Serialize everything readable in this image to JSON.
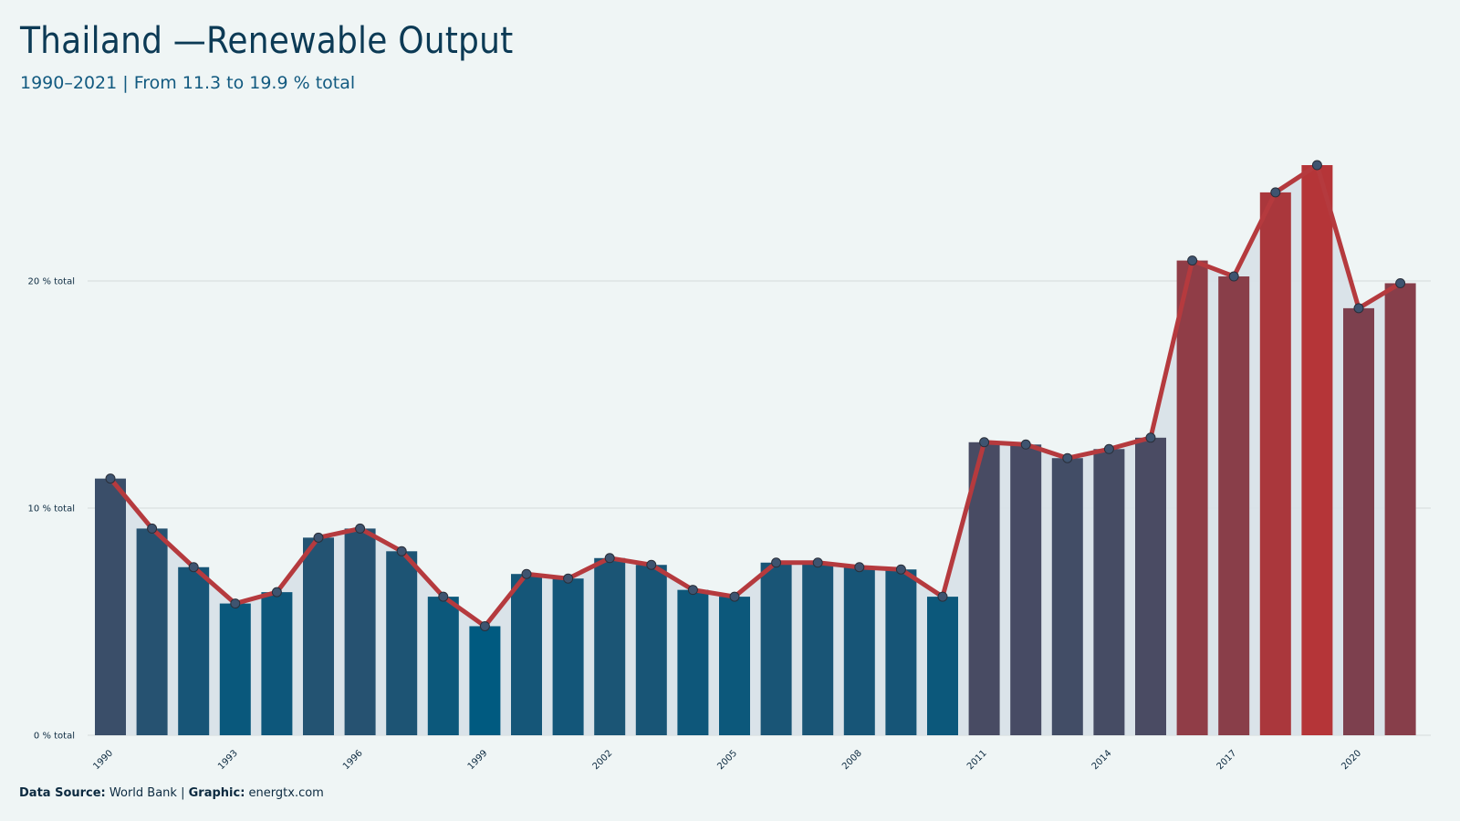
{
  "title": "Thailand —Renewable Output",
  "subtitle": "1990–2021 | From 11.3 to 19.9 % total",
  "footer": {
    "source_label": "Data Source:",
    "source_value": "World Bank",
    "separator": "|",
    "graphic_label": "Graphic:",
    "graphic_value": "energtx.com"
  },
  "colors": {
    "background": "#eff5f5",
    "line": "#b53a3e",
    "area": "#d8e2e8",
    "marker": "#3e5470",
    "bar_low": "#005a80",
    "bar_high": "#b53538",
    "grid": "#d4dadc"
  },
  "chart_data": {
    "type": "bar",
    "title": "",
    "xlabel": "",
    "ylabel": "",
    "ylim": [
      0,
      26
    ],
    "y_ticks": [
      0,
      10,
      20
    ],
    "y_tick_labels": [
      "0 % total",
      "10 % total",
      "20 % total"
    ],
    "x_tick_labels": [
      "1990",
      "1993",
      "1996",
      "1999",
      "2002",
      "2005",
      "2008",
      "2011",
      "2014",
      "2017",
      "2020"
    ],
    "grid": true,
    "legend": "none",
    "overlay": "line with markers and shaded area following bar values",
    "categories": [
      "1990",
      "1991",
      "1992",
      "1993",
      "1994",
      "1995",
      "1996",
      "1997",
      "1998",
      "1999",
      "2000",
      "2001",
      "2002",
      "2003",
      "2004",
      "2005",
      "2006",
      "2007",
      "2008",
      "2009",
      "2010",
      "2011",
      "2012",
      "2013",
      "2014",
      "2015",
      "2016",
      "2017",
      "2018",
      "2019",
      "2020",
      "2021"
    ],
    "values": [
      11.3,
      9.1,
      7.4,
      5.8,
      6.3,
      8.7,
      9.1,
      8.1,
      6.1,
      4.8,
      7.1,
      6.9,
      7.8,
      7.5,
      6.4,
      6.1,
      7.6,
      7.6,
      7.4,
      7.3,
      6.1,
      12.9,
      12.8,
      12.2,
      12.6,
      13.1,
      20.9,
      20.2,
      23.9,
      25.1,
      18.8,
      19.9
    ]
  }
}
